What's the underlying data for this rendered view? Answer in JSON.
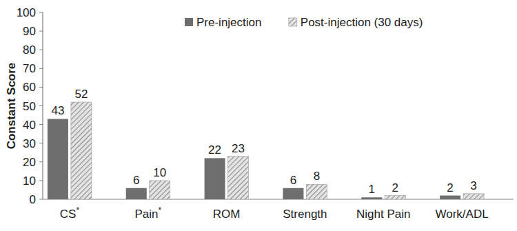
{
  "chart_data": {
    "type": "bar",
    "categories": [
      "CS*",
      "Pain*",
      "ROM",
      "Strength",
      "Night Pain",
      "Work/ADL"
    ],
    "series": [
      {
        "name": "Pre-injection",
        "color": "#6e6e6e",
        "values": [
          43,
          6,
          22,
          6,
          1,
          2
        ]
      },
      {
        "name": "Post-injection (30 days)",
        "color": "#8a8a8a",
        "values": [
          52,
          10,
          23,
          8,
          2,
          3
        ]
      }
    ],
    "y_label": "Constant Score",
    "ylim": [
      0,
      100
    ],
    "yticks": [
      0,
      10,
      20,
      30,
      40,
      50,
      60,
      70,
      80,
      90,
      100
    ],
    "grid": false,
    "legend": "top",
    "data_labels": true
  }
}
